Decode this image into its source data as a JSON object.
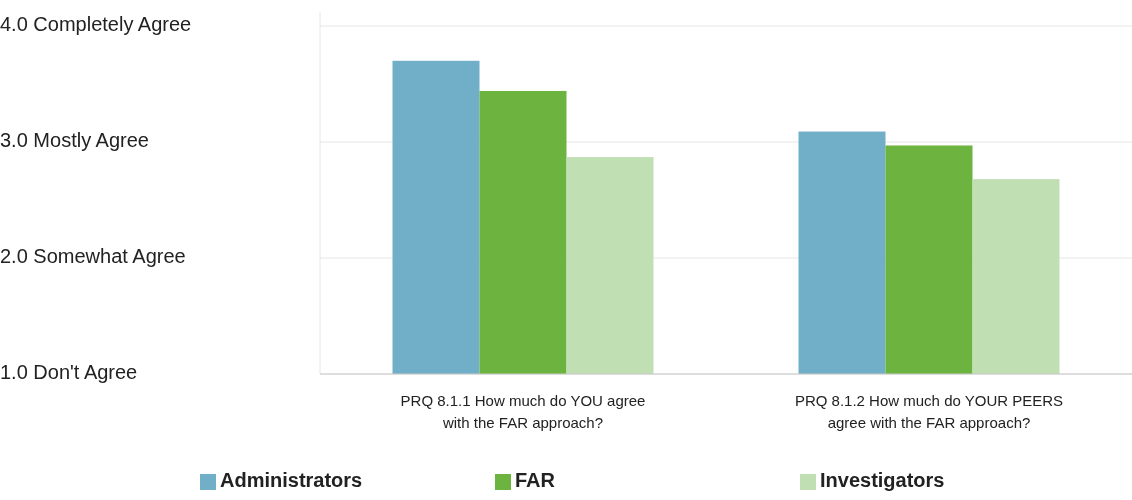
{
  "chart_data": {
    "type": "bar",
    "categories": [
      "PRQ 8.1.1 How much do YOU agree with the FAR approach?",
      "PRQ 8.1.2 How much do YOUR PEERS agree with the FAR approach?"
    ],
    "series": [
      {
        "name": "Administrators",
        "color": "#71afc9",
        "values": [
          3.7,
          3.09
        ]
      },
      {
        "name": "FAR",
        "color": "#6db33f",
        "values": [
          3.44,
          2.97
        ]
      },
      {
        "name": "Investigators",
        "color": "#c0dfb3",
        "values": [
          2.87,
          2.68
        ]
      }
    ],
    "ylim": [
      1,
      4
    ],
    "yticks": [
      {
        "value": 1,
        "label": "1.0 Don't Agree"
      },
      {
        "value": 2,
        "label": "2.0 Somewhat Agree"
      },
      {
        "value": 3,
        "label": "3.0 Mostly Agree"
      },
      {
        "value": 4,
        "label": "4.0 Completely Agree"
      }
    ],
    "grid": "y",
    "legend": "bottom"
  }
}
